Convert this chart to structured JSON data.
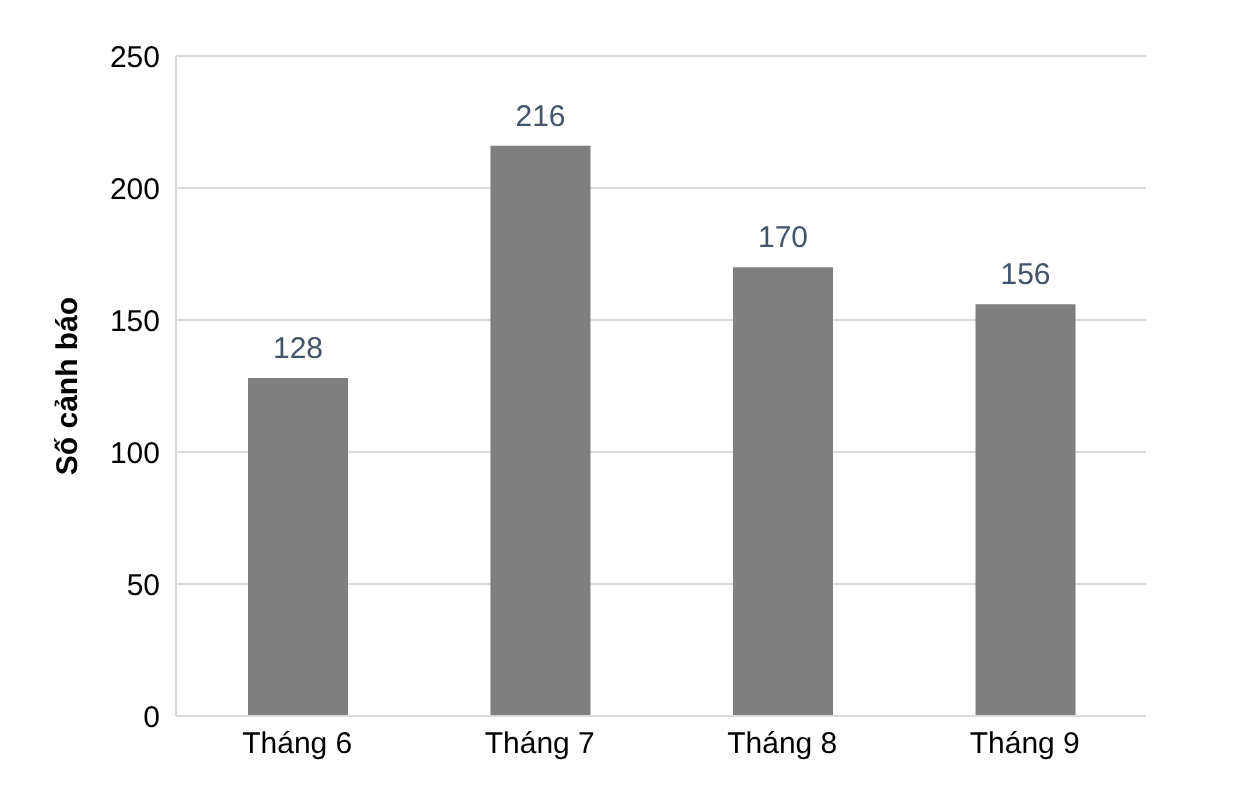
{
  "chart_data": {
    "type": "bar",
    "ylabel": "Số cảnh báo",
    "categories": [
      "Tháng 6",
      "Tháng 7",
      "Tháng 8",
      "Tháng 9"
    ],
    "values": [
      128,
      216,
      170,
      156
    ],
    "color": "#7f7f7f",
    "ylim": [
      0,
      250
    ],
    "yticks": [
      0,
      50,
      100,
      150,
      200,
      250
    ],
    "grid": "y",
    "data_labels": true
  }
}
